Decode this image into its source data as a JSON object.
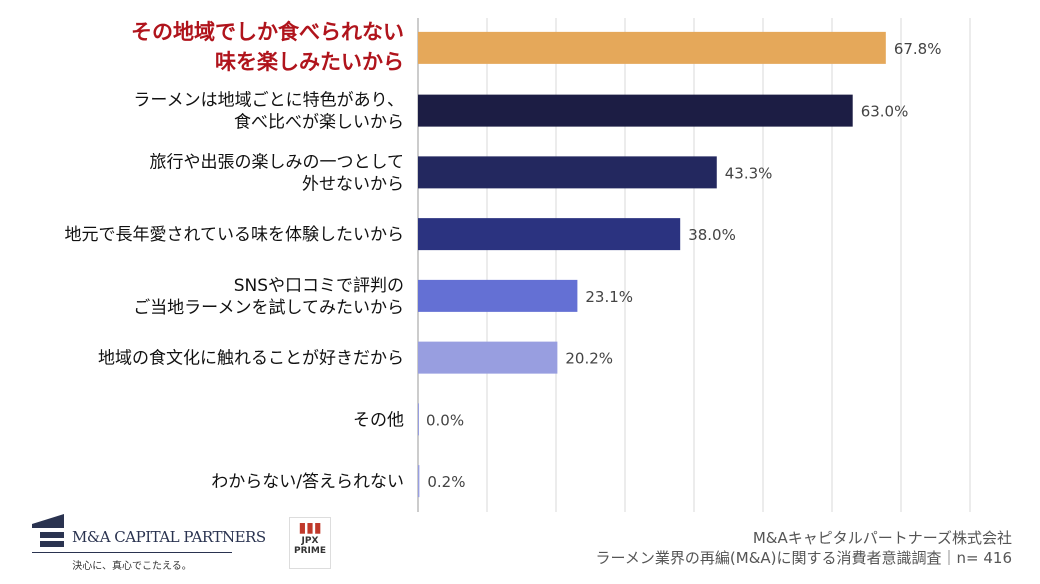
{
  "chart_data": {
    "type": "bar",
    "orientation": "horizontal",
    "categories": [
      "その地域でしか食べられない\n味を楽しみたいから",
      "ラーメンは地域ごとに特色があり、\n食べ比べが楽しいから",
      "旅行や出張の楽しみの一つとして\n外せないから",
      "地元で長年愛されている味を体験したいから",
      "SNSや口コミで評判の\nご当地ラーメンを試してみたいから",
      "地域の食文化に触れることが好きだから",
      "その他",
      "わからない/答えられない"
    ],
    "values": [
      67.8,
      63.0,
      43.3,
      38.0,
      23.1,
      20.2,
      0.0,
      0.2
    ],
    "data_labels": [
      "67.8%",
      "63.0%",
      "43.3%",
      "38.0%",
      "23.1%",
      "20.2%",
      "0.0%",
      "0.2%"
    ],
    "colors": [
      "#E5A85A",
      "#1C1D44",
      "#23285F",
      "#2B3380",
      "#6470D4",
      "#989EE0",
      "#989EE0",
      "#989EE0"
    ],
    "highlight_color": "#B0141C",
    "xlim": [
      0,
      80
    ],
    "grid": true
  },
  "footer": {
    "company_logo": "M&A CAPITAL PARTNERS",
    "tagline": "決心に、真心でこたえる。",
    "jpx_logo": "JPX PRIME",
    "source_line1": "M&Aキャピタルパートナーズ株式会社",
    "source_line2": "ラーメン業界の再編(M&A)に関する消費者意識調査｜n= 416"
  }
}
